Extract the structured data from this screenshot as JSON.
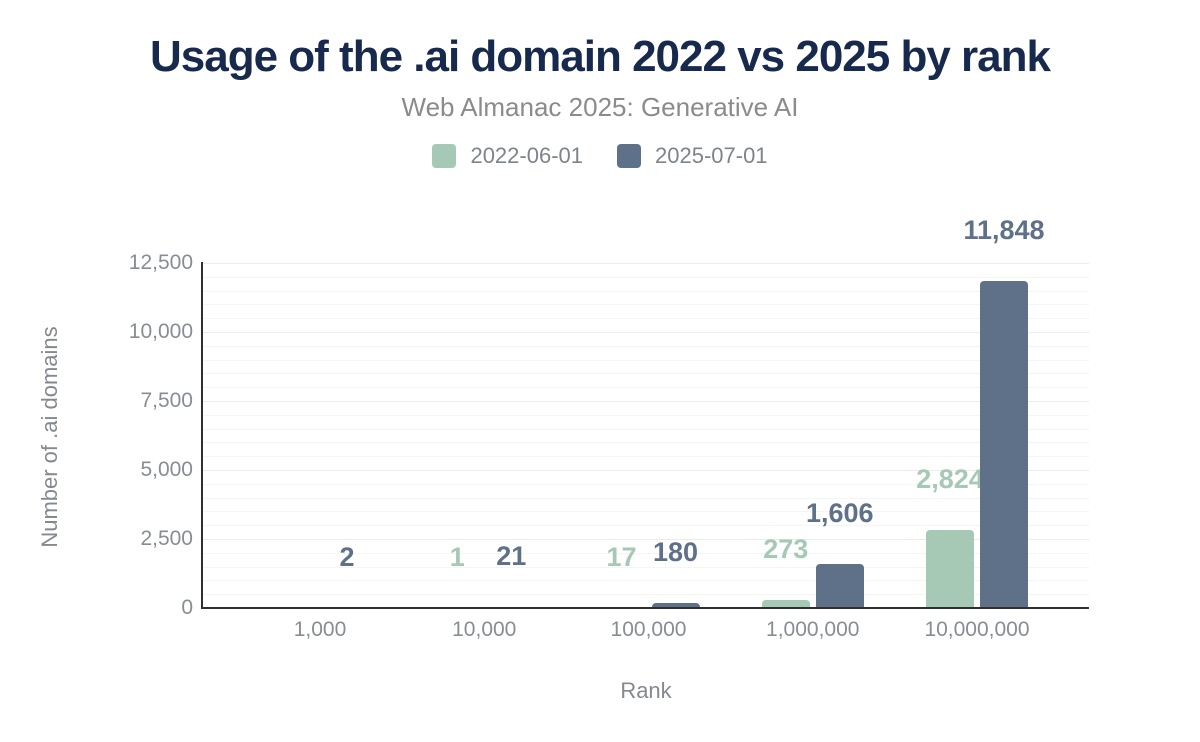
{
  "header": {
    "title": "Usage of the .ai domain 2022 vs 2025 by rank",
    "subtitle": "Web Almanac 2025: Generative AI"
  },
  "colors": {
    "title_text": "#17294d",
    "subtitle_text": "#8b8b8b",
    "legend_text": "#7e848c",
    "axis_text": "#888d94",
    "axis_line": "#2f2f2f",
    "grid_major": "#ececec",
    "grid_minor": "#f5f5f5"
  },
  "chart_data": {
    "type": "bar",
    "title": "Usage of the .ai domain 2022 vs 2025 by rank",
    "subtitle": "Web Almanac 2025: Generative AI",
    "xlabel": "Rank",
    "ylabel": "Number of .ai domains",
    "categories": [
      "1,000",
      "10,000",
      "100,000",
      "1,000,000",
      "10,000,000"
    ],
    "series": [
      {
        "name": "2022-06-01",
        "color": "#a5c9b5",
        "values": [
          0,
          1,
          17,
          273,
          2824
        ],
        "labels": [
          "",
          "1",
          "17",
          "273",
          "2,824"
        ]
      },
      {
        "name": "2025-07-01",
        "color": "#5e7189",
        "values": [
          2,
          21,
          180,
          1606,
          11848
        ],
        "labels": [
          "2",
          "21",
          "180",
          "1,606",
          "11,848"
        ]
      }
    ],
    "ylim": [
      0,
      12500
    ],
    "yticks": [
      0,
      2500,
      5000,
      7500,
      10000,
      12500
    ],
    "ytick_labels": [
      "0",
      "2,500",
      "5,000",
      "7,500",
      "10,000",
      "12,500"
    ],
    "minor_grid_step": 500,
    "grid": "horizontal",
    "legend_position": "top-center"
  }
}
